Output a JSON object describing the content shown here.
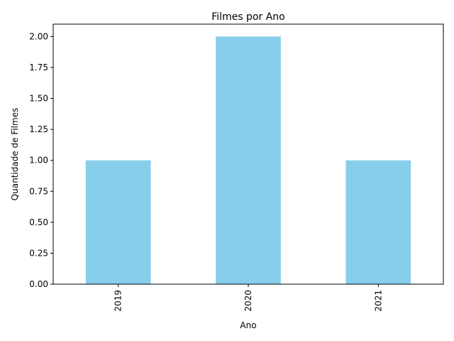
{
  "chart_data": {
    "type": "bar",
    "title": "Filmes por Ano",
    "xlabel": "Ano",
    "ylabel": "Quantidade de Filmes",
    "categories": [
      "2019",
      "2020",
      "2021"
    ],
    "values": [
      1,
      2,
      1
    ],
    "ylim": [
      0,
      2.1
    ],
    "yticks": [
      "0.00",
      "0.25",
      "0.50",
      "0.75",
      "1.00",
      "1.25",
      "1.50",
      "1.75",
      "2.00"
    ],
    "bar_color": "#87ceeb",
    "grid": false,
    "x_tick_rotation": "vertical"
  }
}
